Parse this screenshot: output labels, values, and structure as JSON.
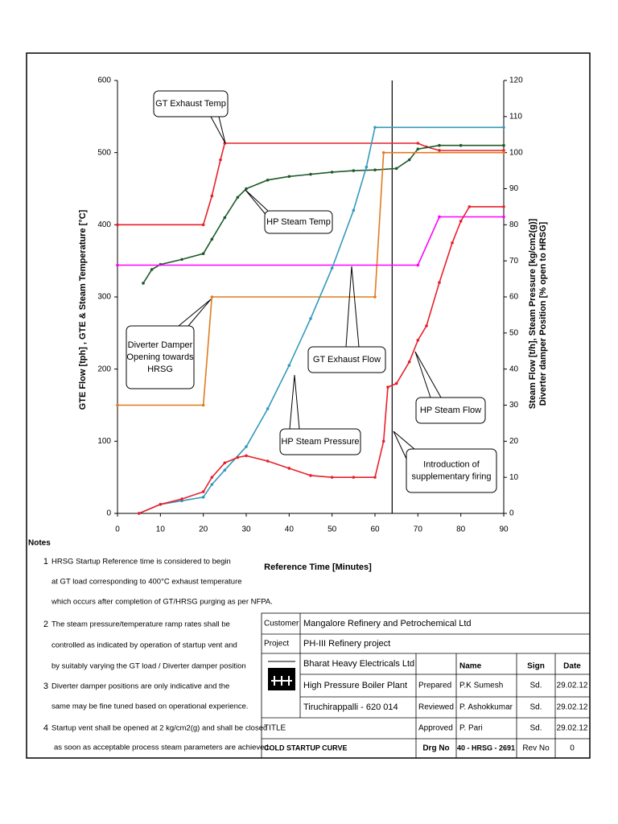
{
  "chart_data": {
    "type": "line",
    "xlabel": "Reference Time [Minutes]",
    "ylabel": "GTE Flow [tph] ,   GTE & Steam Temperature [°C]",
    "y2label": [
      "Steam Flow [t/h],      Steam Pressure [kg/cm2(g)]",
      "Diverter damper Position [% open to HRSG]"
    ],
    "xlim": [
      0,
      90
    ],
    "xticks": [
      0,
      10,
      20,
      30,
      40,
      50,
      60,
      70,
      80,
      90
    ],
    "ylim": [
      0,
      600
    ],
    "yticks": [
      0,
      100,
      200,
      300,
      400,
      500,
      600
    ],
    "y2lim": [
      0,
      120
    ],
    "y2ticks": [
      0,
      10,
      20,
      30,
      40,
      50,
      60,
      70,
      80,
      90,
      100,
      110,
      120
    ],
    "vlines": [
      64
    ],
    "series": [
      {
        "name": "GT Exhaust Temp",
        "color": "#e8202a",
        "x": [
          0,
          20,
          22,
          24,
          25,
          70,
          72,
          75,
          90
        ],
        "values": [
          400,
          400,
          440,
          490,
          513,
          513,
          508,
          503,
          503
        ]
      },
      {
        "name": "HP Steam Temp",
        "color": "#1e5a2a",
        "x": [
          6,
          8,
          10,
          15,
          20,
          22,
          25,
          28,
          30,
          35,
          40,
          45,
          50,
          55,
          60,
          65,
          68,
          70,
          75,
          80,
          90
        ],
        "values": [
          319,
          338,
          345,
          352,
          360,
          380,
          410,
          438,
          450,
          462,
          467,
          470,
          473,
          475,
          476,
          478,
          490,
          505,
          510,
          510,
          510
        ]
      },
      {
        "name": "Diverter Damper",
        "color": "#e07b20",
        "axis": "y2",
        "x": [
          0,
          20,
          22,
          60,
          62,
          90
        ],
        "values": [
          30,
          30,
          60,
          60,
          100,
          100
        ]
      },
      {
        "name": "GT Exhaust Flow",
        "color": "#ff00ff",
        "x": [
          0,
          70,
          75,
          90
        ],
        "values": [
          344,
          344,
          411,
          411
        ]
      },
      {
        "name": "HP Steam Pressure",
        "color": "#3399bb",
        "axis": "y2",
        "x": [
          5,
          10,
          15,
          20,
          22,
          25,
          30,
          35,
          40,
          45,
          50,
          55,
          58,
          60,
          90
        ],
        "values": [
          0,
          2.5,
          3.5,
          4.5,
          8,
          12,
          18.5,
          29,
          41,
          54,
          68,
          84,
          96,
          107,
          107
        ]
      },
      {
        "name": "HP Steam Flow",
        "color": "#e8202a",
        "axis": "y2",
        "x": [
          5,
          10,
          15,
          20,
          22,
          25,
          28,
          30,
          35,
          40,
          45,
          50,
          55,
          60,
          62,
          63,
          65,
          68,
          70,
          72,
          75,
          78,
          80,
          82,
          90
        ],
        "values": [
          0,
          2.5,
          4,
          6,
          10,
          14,
          15.5,
          16,
          14.5,
          12.5,
          10.5,
          10,
          10,
          10,
          20,
          35,
          36,
          42,
          48,
          52,
          64,
          75,
          81,
          85,
          85
        ]
      }
    ],
    "annotations": [
      [
        "GT Exhaust Temp"
      ],
      [
        "HP Steam Temp"
      ],
      [
        "Diverter Damper",
        "Opening towards",
        "HRSG"
      ],
      [
        "GT Exhaust Flow"
      ],
      [
        "HP Steam Pressure"
      ],
      [
        "HP Steam Flow"
      ],
      [
        "Introduction of",
        "supplementary firing"
      ]
    ]
  },
  "notes": {
    "heading": "Notes",
    "items": [
      {
        "number": "1",
        "lines": [
          "HRSG Startup Reference time is considered to begin",
          "at GT load corresponding to 400°C exhaust temperature",
          "which occurs after completion of GT/HRSG purging as per NFPA."
        ]
      },
      {
        "number": "2",
        "lines": [
          "The steam pressure/temperature ramp rates shall be",
          "controlled as indicated by operation of startup vent and",
          "by suitably varying the GT load / Diverter damper position"
        ]
      },
      {
        "number": "3",
        "lines": [
          "Diverter damper positions are only indicative and the",
          "same may be fine tuned based on operational experience."
        ]
      },
      {
        "number": "4",
        "lines": [
          "Startup vent shall be opened at 2 kg/cm2(g) and shall be closed",
          "as soon as acceptable process steam parameters are achieved."
        ]
      }
    ]
  },
  "title_block": {
    "customer_label": "Customer",
    "customer": "Mangalore Refinery and Petrochemical Ltd",
    "project_label": "Project",
    "project": "PH-III Refinery project",
    "company": [
      "Bharat Heavy Electricals Ltd",
      "High Pressure Boiler Plant",
      "Tiruchirappalli - 620 014"
    ],
    "headers": [
      "Name",
      "Sign",
      "Date"
    ],
    "rows": [
      [
        "Prepared",
        "P.K Sumesh",
        "Sd.",
        "29.02.12"
      ],
      [
        "Reviewed",
        "P. Ashokkumar",
        "Sd.",
        "29.02.12"
      ],
      [
        "Approved",
        "P. Pari",
        "Sd.",
        "29.02.12"
      ]
    ],
    "title_label": "TITLE",
    "drawing_title": "COLD STARTUP CURVE",
    "drg_no_label": "Drg No",
    "drg_no": "40 - HRSG - 2691",
    "rev_no_label": "Rev No",
    "rev_no": "0"
  }
}
